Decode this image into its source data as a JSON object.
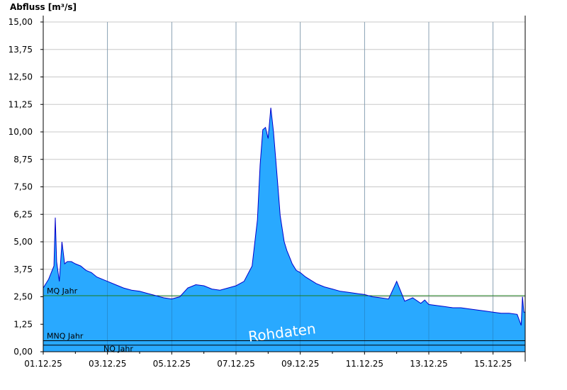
{
  "chart_data": {
    "type": "area",
    "ylabel": "Abfluss [m³/s]",
    "watermark": "Rohdaten",
    "ylim": [
      0,
      15.0
    ],
    "xlim": [
      "2025-12-01T00:00",
      "2025-12-16T00:00"
    ],
    "y_tick_labels": [
      "0,00",
      "1,25",
      "2,50",
      "3,75",
      "5,00",
      "6,25",
      "7,50",
      "8,75",
      "10,00",
      "11,25",
      "12,50",
      "13,75",
      "15,00"
    ],
    "y_ticks": [
      0,
      1.25,
      2.5,
      3.75,
      5.0,
      6.25,
      7.5,
      8.75,
      10.0,
      11.25,
      12.5,
      13.75,
      15.0
    ],
    "x_tick_labels": [
      "01.12.25",
      "03.12.25",
      "05.12.25",
      "07.12.25",
      "09.12.25",
      "11.12.25",
      "13.12.25",
      "15.12.25"
    ],
    "x_ticks": [
      "2025-12-01",
      "2025-12-03",
      "2025-12-05",
      "2025-12-07",
      "2025-12-09",
      "2025-12-11",
      "2025-12-13",
      "2025-12-15"
    ],
    "reference_lines": [
      {
        "label": "MQ Jahr",
        "value": 2.55,
        "color": "#1a7a1a"
      },
      {
        "label": "MNQ Jahr",
        "value": 0.5,
        "color": "#000000"
      },
      {
        "label": "NQ Jahr",
        "value": 0.3,
        "color": "#000000"
      }
    ],
    "colors": {
      "fill": "#29a9ff",
      "line": "#0000cc",
      "grid": "#c8c8c8",
      "axis": "#000000"
    },
    "grid": true,
    "series": [
      {
        "x": [
          "2025-12-01T00:00",
          "2025-12-01T04:00",
          "2025-12-01T08:00",
          "2025-12-01T09:00",
          "2025-12-01T10:00",
          "2025-12-01T12:00",
          "2025-12-01T14:00",
          "2025-12-01T16:00",
          "2025-12-01T18:00",
          "2025-12-01T21:00",
          "2025-12-02T00:00",
          "2025-12-02T04:00",
          "2025-12-02T08:00",
          "2025-12-02T12:00",
          "2025-12-02T16:00",
          "2025-12-02T20:00",
          "2025-12-03T00:00",
          "2025-12-03T06:00",
          "2025-12-03T12:00",
          "2025-12-03T18:00",
          "2025-12-04T00:00",
          "2025-12-04T06:00",
          "2025-12-04T12:00",
          "2025-12-04T18:00",
          "2025-12-05T00:00",
          "2025-12-05T06:00",
          "2025-12-05T12:00",
          "2025-12-05T18:00",
          "2025-12-06T00:00",
          "2025-12-06T06:00",
          "2025-12-06T12:00",
          "2025-12-06T18:00",
          "2025-12-07T00:00",
          "2025-12-07T06:00",
          "2025-12-07T12:00",
          "2025-12-07T16:00",
          "2025-12-07T18:00",
          "2025-12-07T20:00",
          "2025-12-07T22:00",
          "2025-12-08T00:00",
          "2025-12-08T02:00",
          "2025-12-08T04:00",
          "2025-12-08T06:00",
          "2025-12-08T08:00",
          "2025-12-08T09:00",
          "2025-12-08T10:00",
          "2025-12-08T12:00",
          "2025-12-08T14:00",
          "2025-12-08T16:00",
          "2025-12-08T18:00",
          "2025-12-08T21:00",
          "2025-12-09T00:00",
          "2025-12-09T04:00",
          "2025-12-09T08:00",
          "2025-12-09T12:00",
          "2025-12-09T18:00",
          "2025-12-10T00:00",
          "2025-12-10T06:00",
          "2025-12-10T12:00",
          "2025-12-10T18:00",
          "2025-12-11T00:00",
          "2025-12-11T06:00",
          "2025-12-11T12:00",
          "2025-12-11T18:00",
          "2025-12-12T00:00",
          "2025-12-12T06:00",
          "2025-12-12T12:00",
          "2025-12-12T18:00",
          "2025-12-12T21:00",
          "2025-12-13T00:00",
          "2025-12-13T06:00",
          "2025-12-13T12:00",
          "2025-12-13T18:00",
          "2025-12-14T00:00",
          "2025-12-14T06:00",
          "2025-12-14T12:00",
          "2025-12-14T18:00",
          "2025-12-15T00:00",
          "2025-12-15T06:00",
          "2025-12-15T12:00",
          "2025-12-15T18:00",
          "2025-12-15T21:00",
          "2025-12-15T22:00",
          "2025-12-15T23:00",
          "2025-12-16T00:00"
        ],
        "values": [
          2.9,
          3.3,
          3.9,
          6.1,
          4.1,
          3.2,
          5.0,
          4.0,
          4.1,
          4.1,
          4.0,
          3.9,
          3.7,
          3.6,
          3.4,
          3.3,
          3.2,
          3.05,
          2.9,
          2.8,
          2.75,
          2.65,
          2.55,
          2.45,
          2.4,
          2.5,
          2.9,
          3.05,
          3.0,
          2.85,
          2.8,
          2.9,
          3.0,
          3.2,
          3.9,
          6.0,
          8.5,
          10.1,
          10.2,
          9.7,
          11.1,
          10.0,
          8.5,
          7.0,
          6.2,
          5.8,
          5.0,
          4.6,
          4.3,
          4.0,
          3.7,
          3.6,
          3.4,
          3.25,
          3.1,
          2.95,
          2.85,
          2.75,
          2.7,
          2.65,
          2.6,
          2.5,
          2.45,
          2.4,
          3.2,
          2.3,
          2.45,
          2.2,
          2.35,
          2.15,
          2.1,
          2.05,
          2.0,
          2.0,
          1.95,
          1.9,
          1.85,
          1.8,
          1.75,
          1.75,
          1.7,
          1.2,
          2.5,
          1.8,
          1.8
        ]
      }
    ]
  }
}
